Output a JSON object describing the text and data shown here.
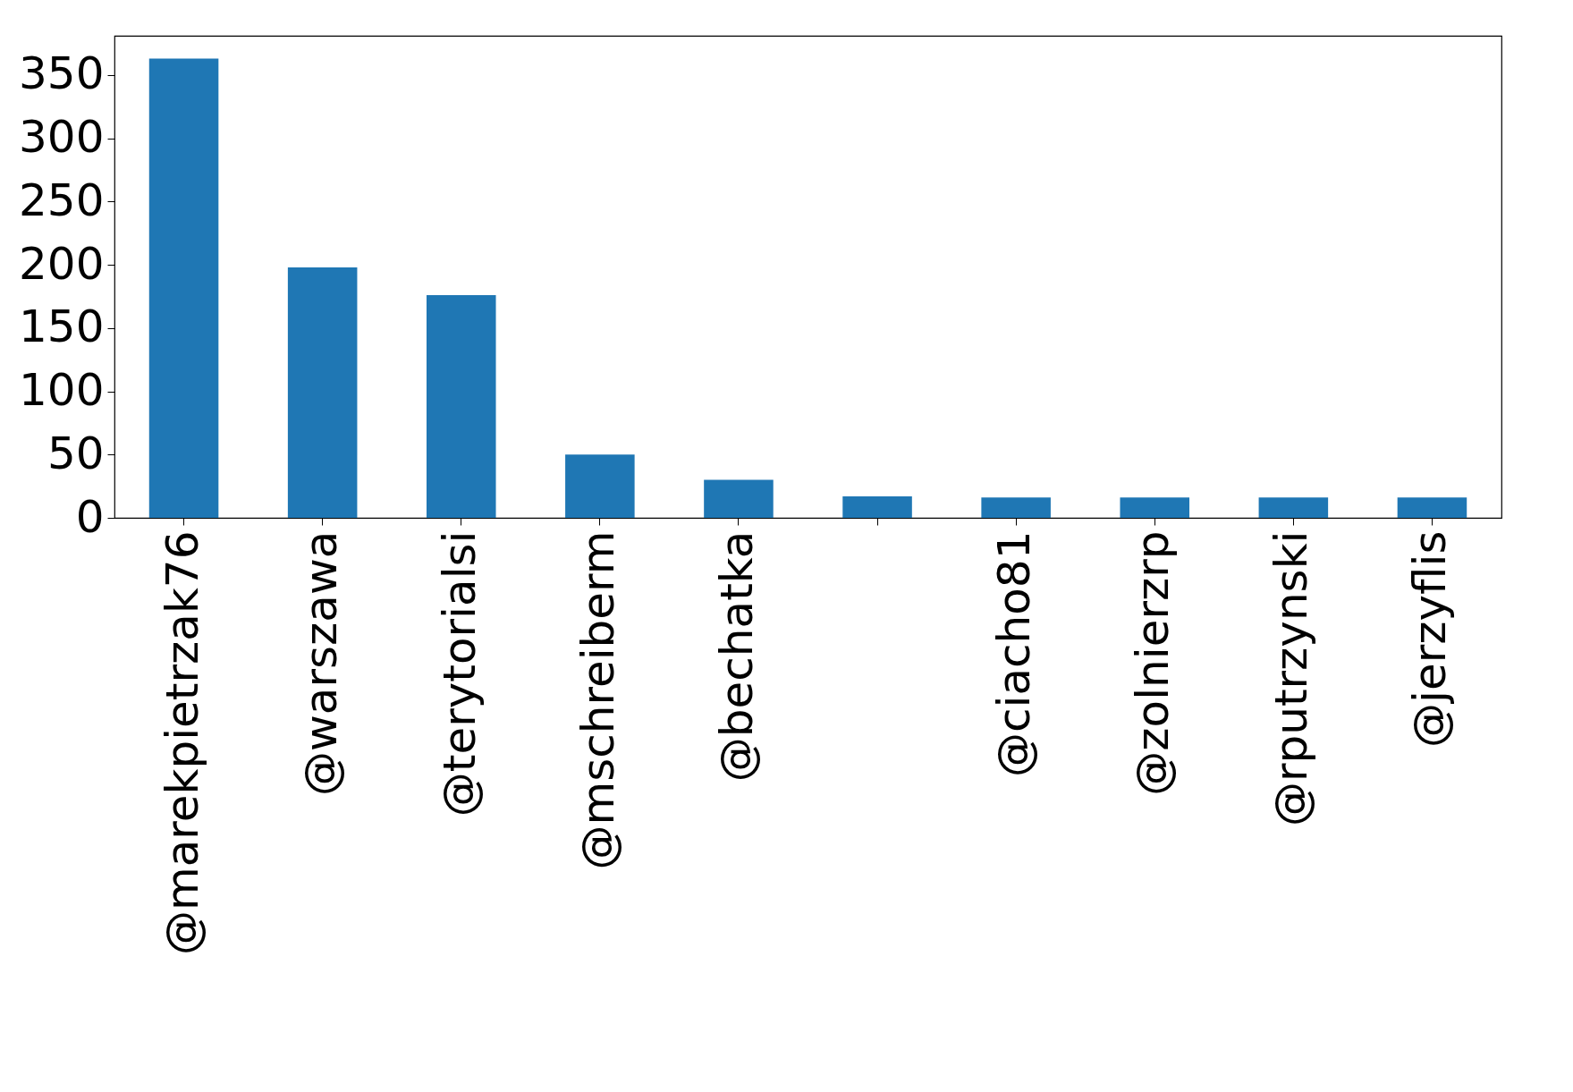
{
  "chart_data": {
    "type": "bar",
    "categories": [
      "@marekpietrzak76",
      "@warszawa",
      "@terytorialsi",
      "@mschreiberm",
      "@bechatka",
      null,
      "@ciacho81",
      "@zolnierzrp",
      "@rputrzynski",
      "@jerzyflis"
    ],
    "values": [
      363,
      198,
      176,
      50,
      30,
      17,
      16,
      16,
      16,
      16
    ],
    "color": "#1f77b4",
    "ylim": [
      0,
      381
    ],
    "yticks": [
      0,
      50,
      100,
      150,
      200,
      250,
      300,
      350
    ],
    "grid": false
  }
}
